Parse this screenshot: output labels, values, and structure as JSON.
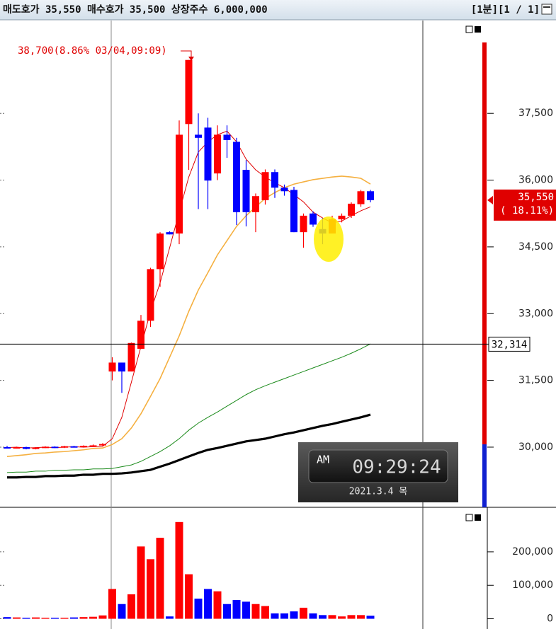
{
  "header": {
    "quote": "매도호가 35,550 매수호가 35,500 상장주수 6,000,000",
    "period": "[1분][1 / 1]"
  },
  "clock": {
    "meridiem": "AM",
    "time": "09:29:24",
    "date": "2021.3.4 목"
  },
  "chart_data": [
    {
      "type": "candlestick",
      "annotation": "38,700(8.86% 03/04,09:09)",
      "current_price": {
        "value": 35550,
        "label": "35,550"
      },
      "current_change": "( 18.11%)",
      "crosshair": {
        "value": 32314,
        "label": "32,314"
      },
      "categories": [
        null,
        null,
        null,
        null,
        null,
        null,
        null,
        null,
        null,
        null,
        null,
        null,
        null,
        null,
        null,
        null,
        null,
        null,
        null,
        null,
        null,
        null,
        null,
        null,
        null,
        null,
        null,
        null,
        null,
        null,
        null,
        null,
        null,
        null,
        null,
        null,
        null,
        null,
        null
      ],
      "open": [
        30000,
        29990,
        30000,
        29960,
        29990,
        30010,
        29990,
        30020,
        30000,
        30030,
        30040,
        31700,
        31900,
        31700,
        32210,
        32840,
        34000,
        34830,
        34800,
        37260,
        37020,
        37180,
        36150,
        37020,
        36860,
        36230,
        35280,
        35550,
        36180,
        35830,
        35780,
        34830,
        35250,
        34900,
        34800,
        35120,
        35200,
        35460,
        35750
      ],
      "high": [
        30030,
        30010,
        30010,
        30000,
        30020,
        30020,
        30030,
        30030,
        30040,
        30060,
        30090,
        32020,
        31900,
        32350,
        32970,
        34030,
        34830,
        34850,
        37340,
        38700,
        37500,
        37400,
        37230,
        37230,
        36950,
        36450,
        35700,
        36240,
        36240,
        35900,
        35850,
        35250,
        35300,
        35150,
        35200,
        35250,
        35500,
        35780,
        35780
      ],
      "low": [
        29980,
        29970,
        29950,
        29950,
        29980,
        29980,
        29980,
        30000,
        29990,
        30010,
        30020,
        31500,
        31220,
        31700,
        32210,
        32700,
        33600,
        34780,
        34560,
        36230,
        35350,
        35350,
        36000,
        36500,
        34990,
        34960,
        34830,
        35450,
        35600,
        35650,
        34830,
        34480,
        34950,
        34560,
        34800,
        35050,
        35150,
        35400,
        35500
      ],
      "close": [
        29990,
        30000,
        29960,
        29990,
        30010,
        29990,
        30020,
        30000,
        30030,
        30040,
        30070,
        31900,
        31700,
        32340,
        32840,
        34000,
        34800,
        34780,
        37020,
        38700,
        36950,
        35990,
        37020,
        36900,
        35280,
        35280,
        35640,
        36180,
        35830,
        35750,
        34830,
        35200,
        35000,
        34800,
        35120,
        35200,
        35470,
        35750,
        35550
      ],
      "up_color": "#ff0000",
      "down_color": "#0000ff",
      "series": [
        {
          "color": "#e00000",
          "values": [
            29990,
            30000,
            29980,
            29990,
            30000,
            29990,
            30000,
            30010,
            30000,
            30010,
            30020,
            30190,
            30670,
            31460,
            32260,
            33050,
            33690,
            34480,
            35280,
            36070,
            36630,
            36860,
            37020,
            37100,
            36860,
            36470,
            36230,
            36070,
            35940,
            35830,
            35670,
            35510,
            35280,
            35150,
            35040,
            35080,
            35200,
            35310,
            35400
          ]
        },
        {
          "color": "#f5b040",
          "values": [
            29790,
            29810,
            29830,
            29860,
            29870,
            29890,
            29900,
            29920,
            29940,
            29970,
            29980,
            30060,
            30190,
            30430,
            30750,
            31140,
            31540,
            32020,
            32500,
            33050,
            33530,
            33920,
            34320,
            34640,
            34960,
            35200,
            35400,
            35590,
            35720,
            35830,
            35910,
            35960,
            36010,
            36040,
            36070,
            36090,
            36070,
            36040,
            35910
          ]
        },
        {
          "color": "#1a8a1a",
          "values": [
            29430,
            29440,
            29440,
            29460,
            29460,
            29480,
            29480,
            29490,
            29490,
            29510,
            29510,
            29520,
            29560,
            29600,
            29680,
            29790,
            29900,
            30030,
            30190,
            30380,
            30540,
            30670,
            30790,
            30920,
            31050,
            31180,
            31290,
            31380,
            31460,
            31540,
            31620,
            31700,
            31780,
            31860,
            31940,
            32020,
            32110,
            32210,
            32320
          ]
        },
        {
          "color": "#000000",
          "values": [
            29320,
            29320,
            29330,
            29330,
            29350,
            29350,
            29360,
            29360,
            29380,
            29380,
            29400,
            29400,
            29410,
            29430,
            29460,
            29490,
            29560,
            29630,
            29710,
            29790,
            29870,
            29940,
            29980,
            30030,
            30080,
            30130,
            30160,
            30190,
            30240,
            30290,
            30330,
            30380,
            30430,
            30480,
            30520,
            30570,
            30620,
            30670,
            30730
          ]
        }
      ],
      "ylim": [
        28680,
        39570
      ],
      "yticks": [
        {
          "value": 30000,
          "label": "30,000"
        },
        {
          "value": 31500,
          "label": "31,500"
        },
        {
          "value": 33000,
          "label": "33,000"
        },
        {
          "value": 34500,
          "label": "34,500"
        },
        {
          "value": 36000,
          "label": "36,000"
        },
        {
          "value": 37500,
          "label": "37,500"
        }
      ]
    },
    {
      "type": "bar",
      "categories": [
        null,
        null,
        null,
        null,
        null,
        null,
        null,
        null,
        null,
        null,
        null,
        null,
        null,
        null,
        null,
        null,
        null,
        null,
        null,
        null,
        null,
        null,
        null,
        null,
        null,
        null,
        null,
        null,
        null,
        null,
        null,
        null,
        null,
        null,
        null,
        null,
        null,
        null,
        null
      ],
      "values": [
        5000,
        4000,
        3000,
        4000,
        3000,
        3000,
        3000,
        4000,
        5000,
        6000,
        10000,
        89000,
        44000,
        73000,
        216000,
        178000,
        242000,
        7000,
        289000,
        133000,
        60000,
        89000,
        82000,
        44000,
        56000,
        51000,
        44000,
        38000,
        16000,
        16000,
        22000,
        33000,
        16000,
        11000,
        11000,
        7000,
        11000,
        11000,
        9000
      ],
      "ylim": [
        -20000,
        333000
      ],
      "yticks": [
        0,
        {
          "value": 100000,
          "label": "100,000"
        },
        {
          "value": 200000,
          "label": "200,000"
        }
      ]
    }
  ]
}
